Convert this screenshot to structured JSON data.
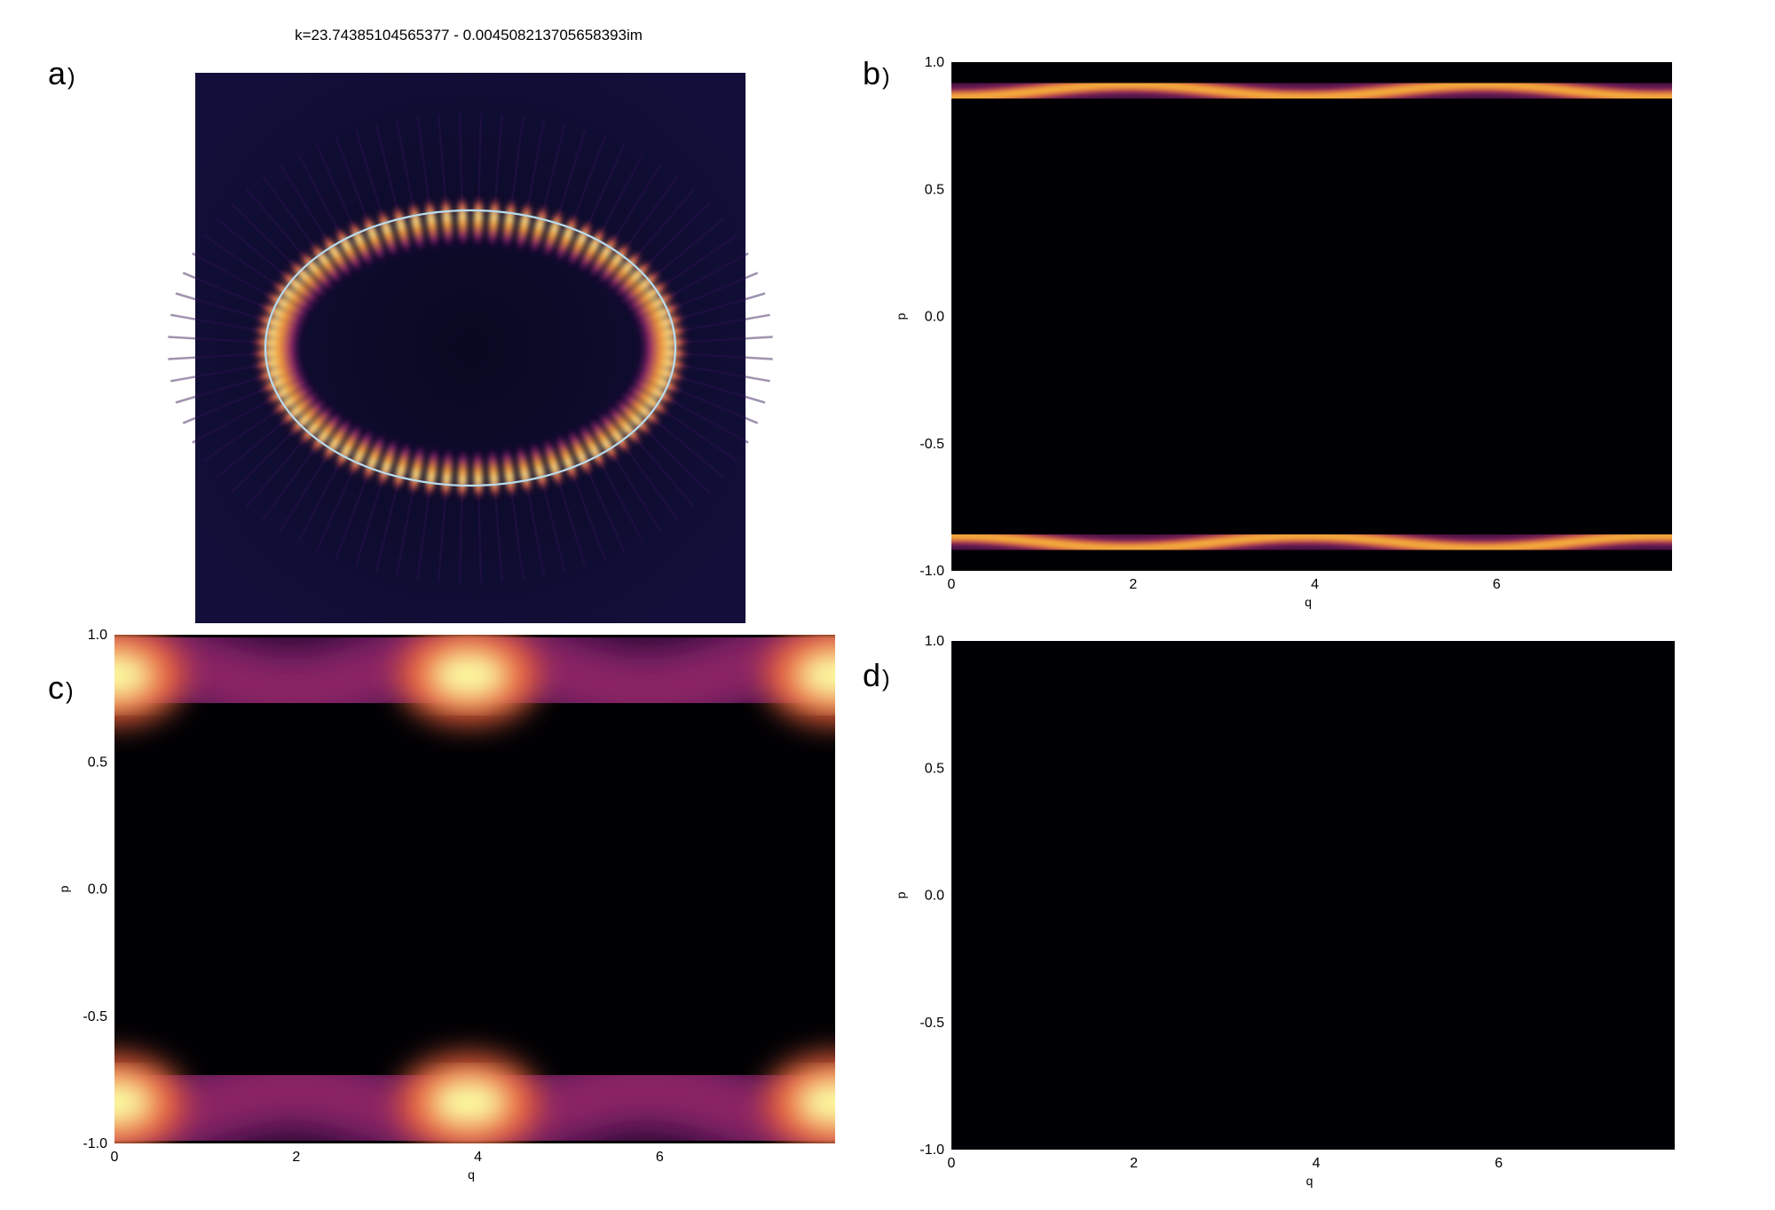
{
  "title": "k=23.74385104565377 - 0.004508213705658393im",
  "panels": {
    "a": {
      "letter": "a",
      "paren": ")"
    },
    "b": {
      "letter": "b",
      "paren": ")"
    },
    "c": {
      "letter": "c",
      "paren": ")"
    },
    "d": {
      "letter": "d",
      "paren": ")"
    }
  },
  "colors": {
    "background": "#000004",
    "mid": "#781c6d",
    "bright": "#f7d13d",
    "peak": "#fcffa4",
    "boundary": "#b8dcef"
  },
  "chart_data": [
    {
      "id": "a",
      "type": "heatmap",
      "title": "k=23.74385104565377 - 0.004508213705658393im",
      "description_values": {
        "boundary_shape": "ellipse",
        "lobes": 80
      },
      "xlabel": "",
      "ylabel": ""
    },
    {
      "id": "b",
      "type": "heatmap",
      "xlabel": "q",
      "ylabel": "p",
      "xlim": [
        0,
        7.93
      ],
      "ylim": [
        -1.0,
        1.0
      ],
      "xticks": [
        "0",
        "2",
        "4",
        "6"
      ],
      "xtick_values": [
        0,
        2,
        4,
        6
      ],
      "yticks": [
        "1.0",
        "0.5",
        "0.0",
        "-0.5",
        "-1.0"
      ],
      "ytick_values": [
        1.0,
        0.5,
        0.0,
        -0.5,
        -1.0
      ]
    },
    {
      "id": "c",
      "type": "heatmap",
      "xlabel": "q",
      "ylabel": "p",
      "xlim": [
        0,
        7.93
      ],
      "ylim": [
        -1.0,
        1.0
      ],
      "xticks": [
        "0",
        "2",
        "4",
        "6"
      ],
      "xtick_values": [
        0,
        2,
        4,
        6
      ],
      "yticks": [
        "1.0",
        "0.5",
        "0.0",
        "-0.5",
        "-1.0"
      ],
      "ytick_values": [
        1.0,
        0.5,
        0.0,
        -0.5,
        -1.0
      ]
    },
    {
      "id": "d",
      "type": "heatmap",
      "xlabel": "q",
      "ylabel": "p",
      "xlim": [
        0,
        7.93
      ],
      "ylim": [
        -1.0,
        1.0
      ],
      "xticks": [
        "0",
        "2",
        "4",
        "6"
      ],
      "xtick_values": [
        0,
        2,
        4,
        6
      ],
      "yticks": [
        "1.0",
        "0.5",
        "0.0",
        "-0.5",
        "-1.0"
      ],
      "ytick_values": [
        1.0,
        0.5,
        0.0,
        -0.5,
        -1.0
      ]
    }
  ]
}
